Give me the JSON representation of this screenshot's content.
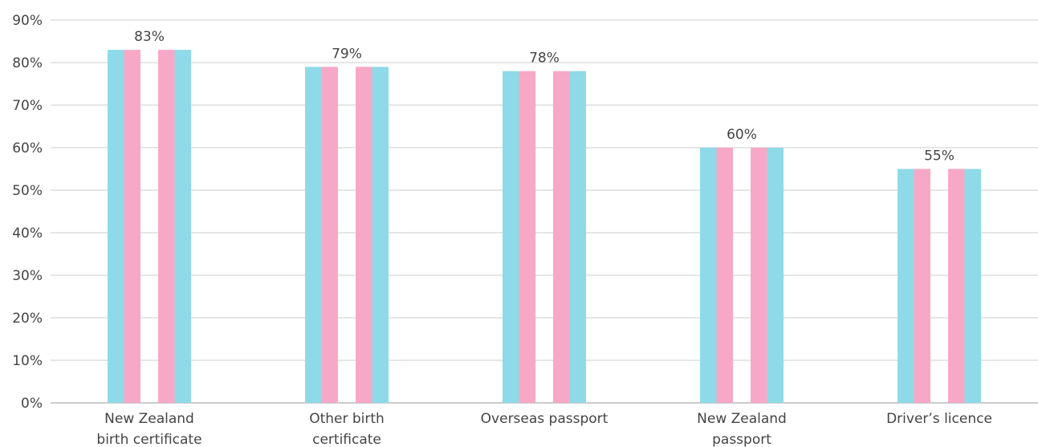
{
  "chart_data": {
    "type": "bar",
    "categories": [
      [
        "New Zealand",
        "birth certificate"
      ],
      [
        "Other birth",
        "certificate"
      ],
      [
        "Overseas passport"
      ],
      [
        "New Zealand",
        "passport"
      ],
      [
        "Driver’s licence"
      ]
    ],
    "values": [
      83,
      79,
      78,
      60,
      55
    ],
    "data_labels": [
      "83%",
      "79%",
      "78%",
      "60%",
      "55%"
    ],
    "yticks": [
      "0%",
      "10%",
      "20%",
      "30%",
      "40%",
      "50%",
      "60%",
      "70%",
      "80%",
      "90%"
    ],
    "ylim": [
      0,
      90
    ],
    "grid": true,
    "colors": {
      "blue": "#8fdae8",
      "pink": "#f7a8c6",
      "grid": "#cccccc",
      "axis": "#999999"
    }
  }
}
